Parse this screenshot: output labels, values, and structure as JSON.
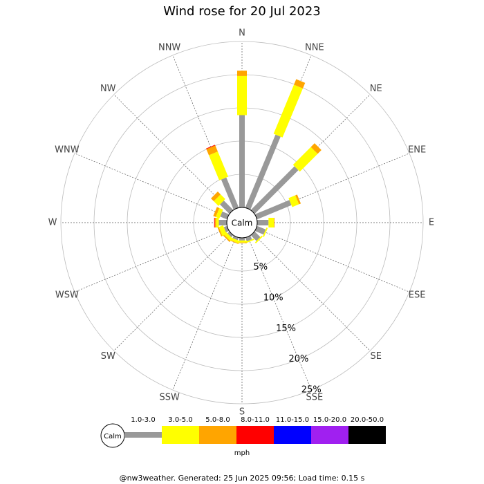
{
  "chart_data": {
    "type": "windrose",
    "title": "Wind rose for 20 Jul 2023",
    "directions": [
      "N",
      "NNE",
      "NE",
      "ENE",
      "E",
      "ESE",
      "SE",
      "SSE",
      "S",
      "SSW",
      "SW",
      "WSW",
      "W",
      "WNW",
      "NW",
      "NNW"
    ],
    "series": [
      {
        "name": "1.0-3.0",
        "color": "#999999",
        "values": [
          13.9,
          11.9,
          9.3,
          5.6,
          1.7,
          1.4,
          1.2,
          0.6,
          0.4,
          0.4,
          0.4,
          0.5,
          1.2,
          1.1,
          2.0,
          4.9
        ]
      },
      {
        "name": "3.0-5.0",
        "color": "#ffff00",
        "values": [
          5.9,
          8.0,
          3.8,
          1.1,
          0.8,
          0.2,
          0.2,
          0.2,
          0.3,
          0.4,
          0.5,
          0.7,
          0.4,
          0.6,
          1.0,
          4.1
        ]
      },
      {
        "name": "5.0-8.0",
        "color": "#ffa500",
        "values": [
          0.8,
          0.9,
          0.8,
          0.3,
          0.1,
          0,
          0,
          0,
          0.1,
          0.1,
          0.2,
          0.2,
          0.2,
          0.4,
          0.6,
          1.0
        ]
      },
      {
        "name": "8.0-11.0",
        "color": "#ff0000",
        "values": [
          0,
          0,
          0,
          0,
          0,
          0,
          0,
          0,
          0,
          0,
          0,
          0,
          0.1,
          0,
          0,
          0.1
        ]
      },
      {
        "name": "11.0-15.0",
        "color": "#0000ff",
        "values": [
          0,
          0,
          0,
          0,
          0,
          0,
          0,
          0,
          0,
          0,
          0,
          0,
          0,
          0,
          0,
          0
        ]
      },
      {
        "name": "15.0-20.0",
        "color": "#a020f0",
        "values": [
          0,
          0,
          0,
          0,
          0,
          0,
          0,
          0,
          0,
          0,
          0,
          0,
          0,
          0,
          0,
          0
        ]
      },
      {
        "name": "20.0-50.0",
        "color": "#000000",
        "values": [
          0,
          0,
          0,
          0,
          0,
          0,
          0,
          0,
          0,
          0,
          0,
          0,
          0,
          0,
          0,
          0
        ]
      }
    ],
    "rlim": [
      0,
      25
    ],
    "rticks": [
      {
        "value": 5,
        "label": "5%"
      },
      {
        "value": 10,
        "label": "10%"
      },
      {
        "value": 15,
        "label": "15%"
      },
      {
        "value": 20,
        "label": "20%"
      },
      {
        "value": 25,
        "label": "25%"
      }
    ],
    "calm_label": "Calm",
    "unit_label": "mph"
  },
  "footer": "@nw3weather. Generated: 25 Jun 2025 09:56; Load time: 0.15 s"
}
